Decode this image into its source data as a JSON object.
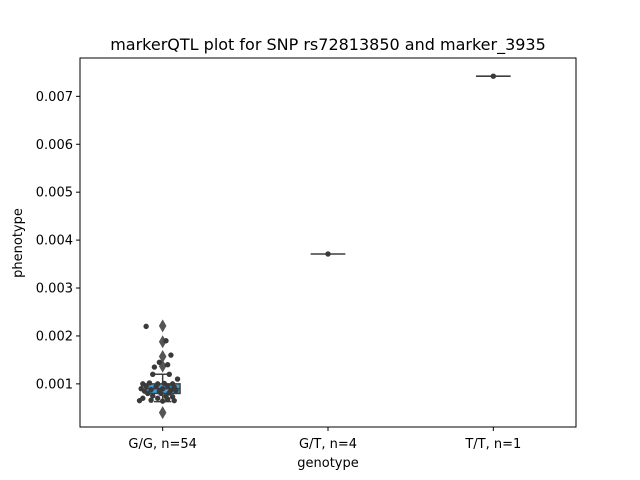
{
  "chart_data": {
    "type": "box",
    "title": "markerQTL plot for SNP rs72813850 and marker_3935",
    "xlabel": "genotype",
    "ylabel": "phenotype",
    "categories": [
      "G/G, n=54",
      "G/T, n=4",
      "T/T, n=1"
    ],
    "ylim": [
      0.0001,
      0.0078
    ],
    "yticks": [
      0.001,
      0.002,
      0.003,
      0.004,
      0.005,
      0.006,
      0.007
    ],
    "ytick_labels": [
      "0.001",
      "0.002",
      "0.003",
      "0.004",
      "0.005",
      "0.006",
      "0.007"
    ],
    "box_color": "#3a9fe0",
    "line_color": "#3f3f3f",
    "point_color": "#3a3a3a",
    "boxes": [
      {
        "category": "G/G, n=54",
        "q1": 0.0008,
        "median": 0.0009,
        "q3": 0.001,
        "whisker_low": 0.00063,
        "whisker_high": 0.0012,
        "outliers": [
          0.0004,
          0.00137,
          0.00157,
          0.00188,
          0.00221
        ]
      },
      {
        "category": "G/T, n=4",
        "q1": 0.00371,
        "median": 0.00371,
        "q3": 0.00371,
        "whisker_low": 0.00371,
        "whisker_high": 0.00371,
        "outliers": []
      },
      {
        "category": "T/T, n=1",
        "q1": 0.00742,
        "median": 0.00742,
        "q3": 0.00742,
        "whisker_low": 0.00742,
        "whisker_high": 0.00742,
        "outliers": []
      }
    ],
    "points": [
      {
        "category": 0,
        "x": -0.1,
        "y": 0.0022
      },
      {
        "category": 0,
        "x": 0.02,
        "y": 0.0019
      },
      {
        "category": 0,
        "x": 0.05,
        "y": 0.0016
      },
      {
        "category": 0,
        "x": -0.02,
        "y": 0.00145
      },
      {
        "category": 0,
        "x": 0.03,
        "y": 0.0014
      },
      {
        "category": 0,
        "x": -0.05,
        "y": 0.00135
      },
      {
        "category": 0,
        "x": -0.06,
        "y": 0.0012
      },
      {
        "category": 0,
        "x": 0.04,
        "y": 0.0012
      },
      {
        "category": 0,
        "x": 0.09,
        "y": 0.0011
      },
      {
        "category": 0,
        "x": -0.12,
        "y": 0.001
      },
      {
        "category": 0,
        "x": -0.08,
        "y": 0.00102
      },
      {
        "category": 0,
        "x": -0.03,
        "y": 0.001
      },
      {
        "category": 0,
        "x": 0.01,
        "y": 0.00101
      },
      {
        "category": 0,
        "x": 0.06,
        "y": 0.001
      },
      {
        "category": 0,
        "x": -0.1,
        "y": 0.00095
      },
      {
        "category": 0,
        "x": -0.04,
        "y": 0.00094
      },
      {
        "category": 0,
        "x": 0.03,
        "y": 0.00096
      },
      {
        "category": 0,
        "x": 0.07,
        "y": 0.00093
      },
      {
        "category": 0,
        "x": -0.13,
        "y": 0.0009
      },
      {
        "category": 0,
        "x": -0.07,
        "y": 0.00088
      },
      {
        "category": 0,
        "x": 0.0,
        "y": 0.0009
      },
      {
        "category": 0,
        "x": 0.05,
        "y": 0.00087
      },
      {
        "category": 0,
        "x": -0.11,
        "y": 0.00085
      },
      {
        "category": 0,
        "x": -0.02,
        "y": 0.00084
      },
      {
        "category": 0,
        "x": 0.08,
        "y": 0.00086
      },
      {
        "category": 0,
        "x": -0.09,
        "y": 0.0008
      },
      {
        "category": 0,
        "x": -0.01,
        "y": 0.0008
      },
      {
        "category": 0,
        "x": 0.04,
        "y": 0.00081
      },
      {
        "category": 0,
        "x": -0.06,
        "y": 0.00075
      },
      {
        "category": 0,
        "x": 0.02,
        "y": 0.00074
      },
      {
        "category": 0,
        "x": 0.06,
        "y": 0.00073
      },
      {
        "category": 0,
        "x": -0.12,
        "y": 0.0007
      },
      {
        "category": 0,
        "x": -0.03,
        "y": 0.0007
      },
      {
        "category": 0,
        "x": 0.03,
        "y": 0.00068
      },
      {
        "category": 0,
        "x": -0.14,
        "y": 0.00065
      },
      {
        "category": 0,
        "x": -0.07,
        "y": 0.00066
      },
      {
        "category": 0,
        "x": 0.0,
        "y": 0.00064
      },
      {
        "category": 0,
        "x": 0.07,
        "y": 0.00065
      },
      {
        "category": 1,
        "x": 0.0,
        "y": 0.00371
      },
      {
        "category": 2,
        "x": 0.0,
        "y": 0.00742
      }
    ]
  }
}
